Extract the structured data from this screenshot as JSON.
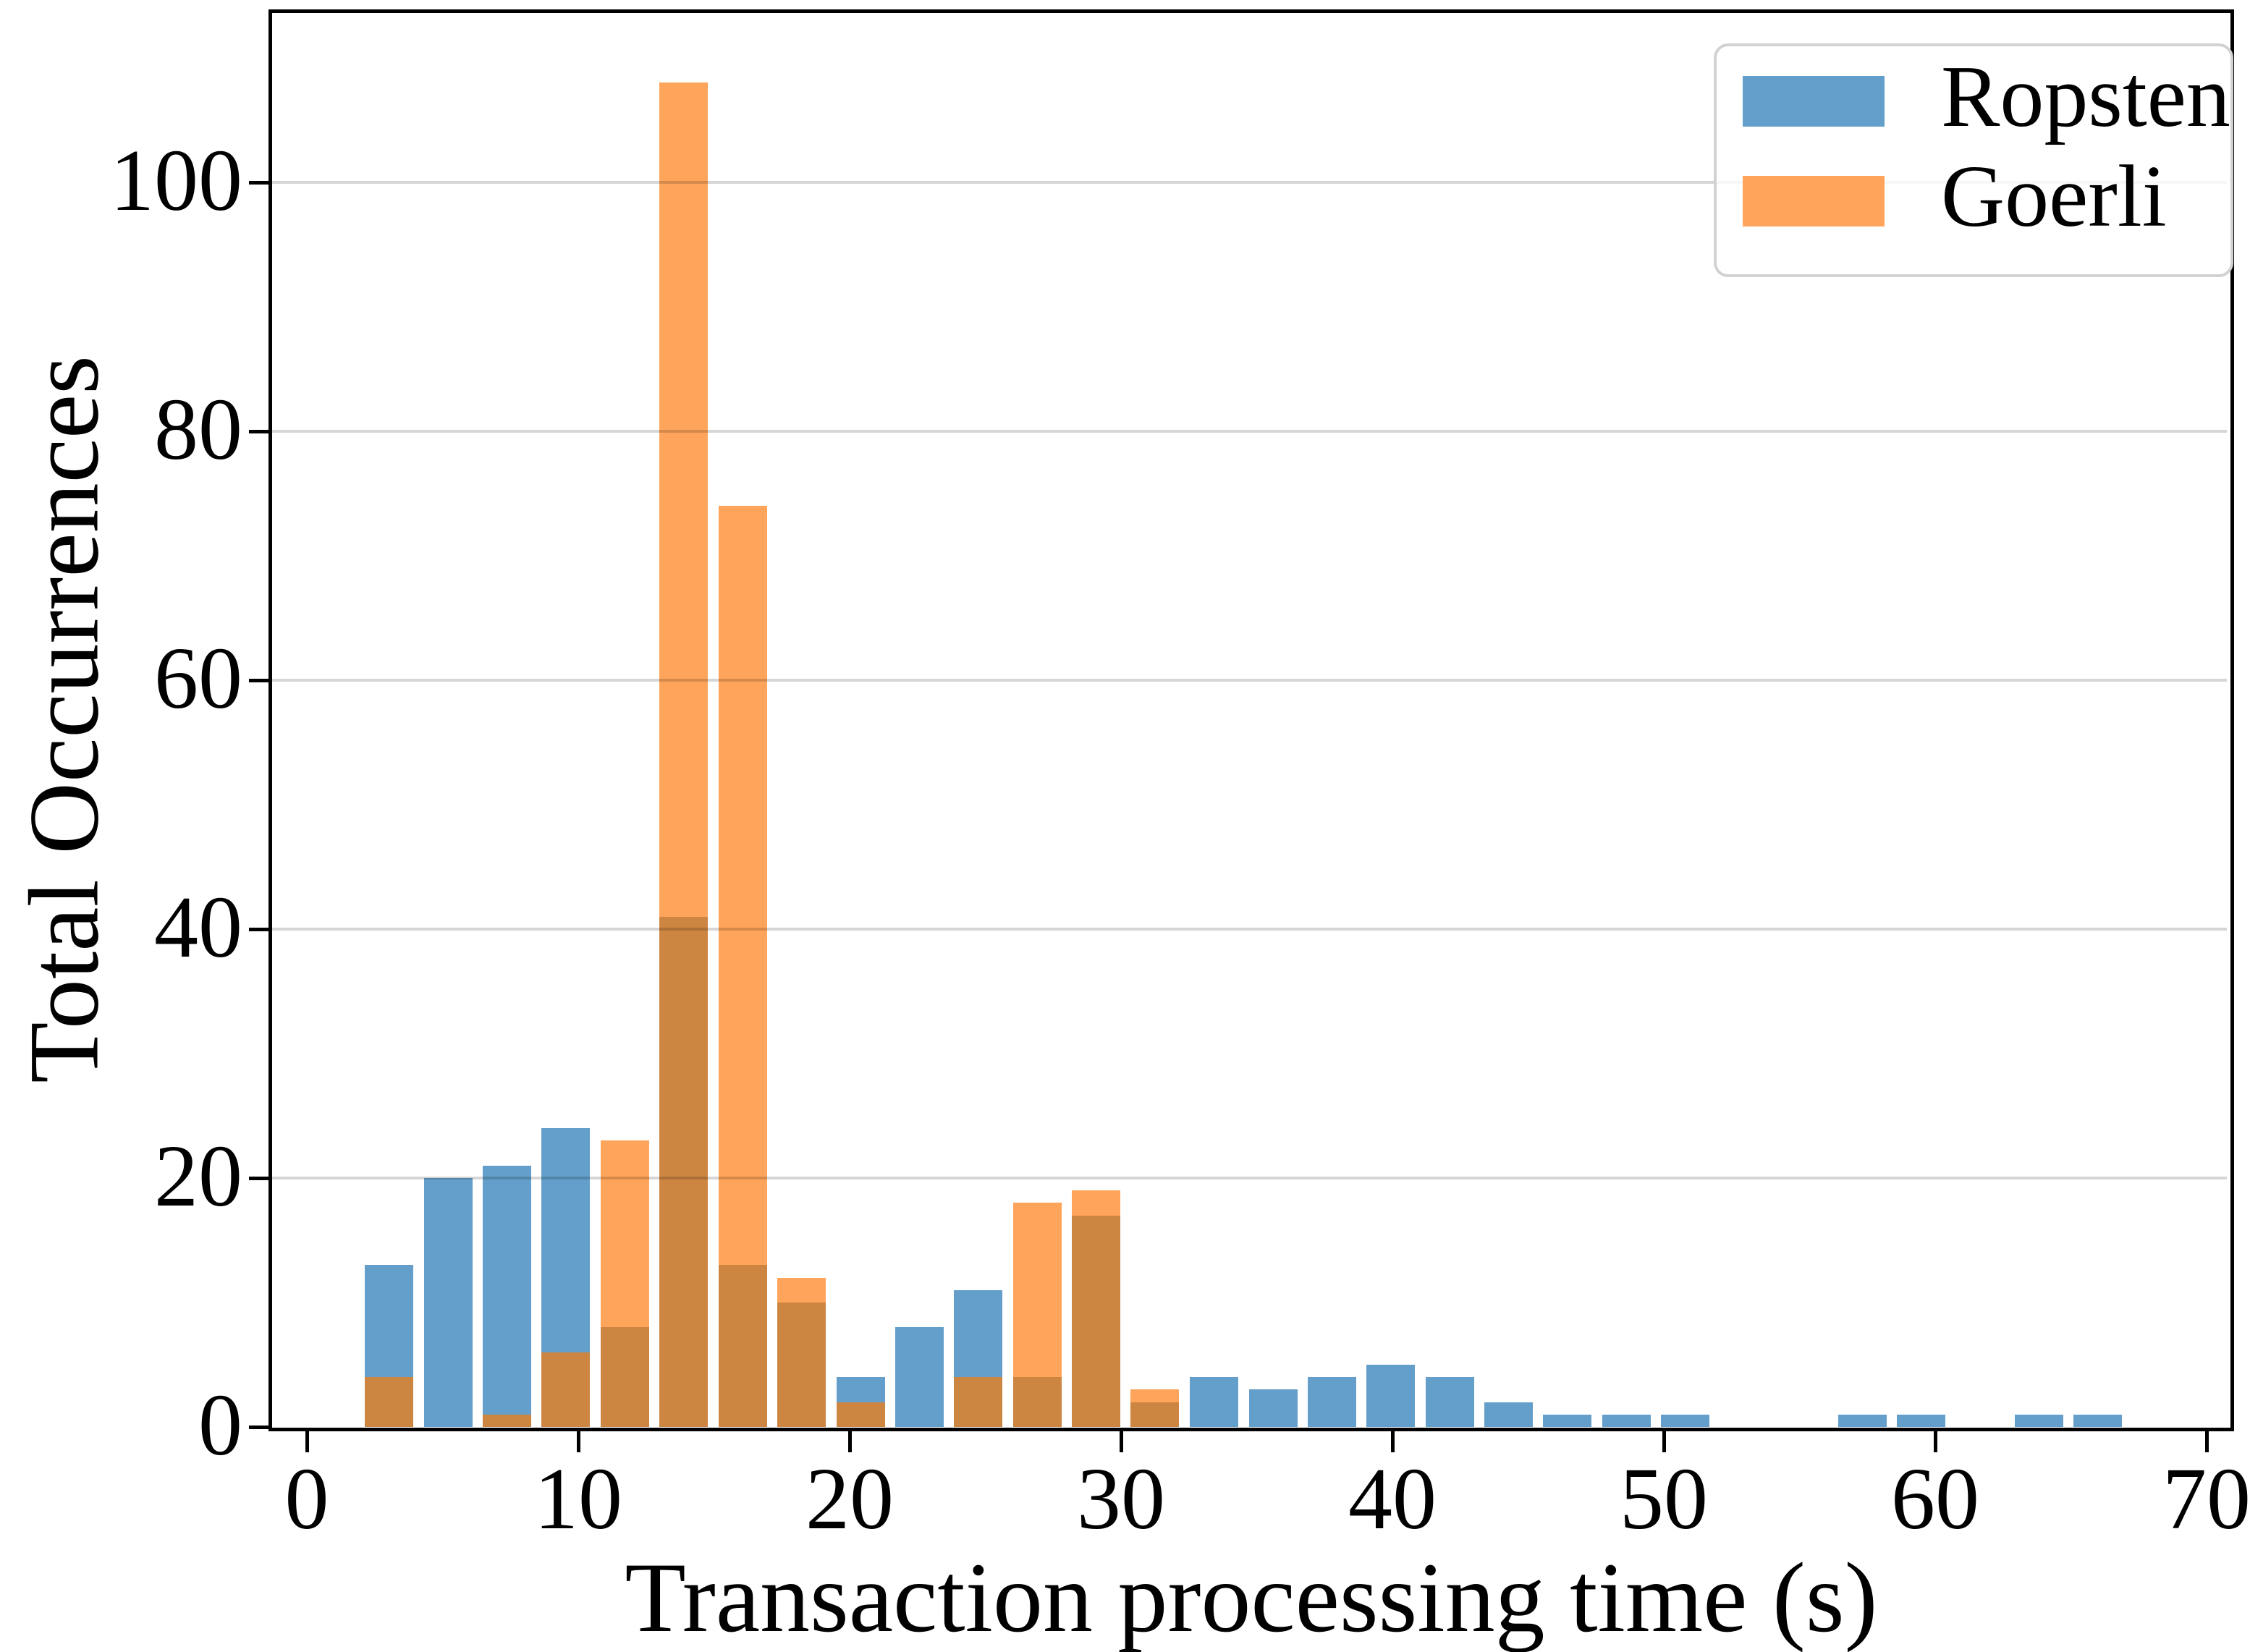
{
  "chart_data": {
    "type": "bar",
    "subtype": "overlaid-histogram",
    "title": "",
    "xlabel": "Transaction processing time (s)",
    "ylabel": "Total Occurrences",
    "x_ticks": [
      0,
      10,
      20,
      30,
      40,
      50,
      60,
      70
    ],
    "y_ticks": [
      0,
      20,
      40,
      60,
      80,
      100
    ],
    "xlim": [
      -1.25,
      71.0
    ],
    "ylim": [
      0,
      113.8
    ],
    "grid": "horizontal",
    "bin_width_s": 2.171,
    "bar_width_s": 1.79,
    "bin_centers_s": [
      3.03,
      5.2,
      7.37,
      9.54,
      11.71,
      13.89,
      16.06,
      18.23,
      20.4,
      22.57,
      24.74,
      26.91,
      29.08,
      31.25,
      33.42,
      35.6,
      37.77,
      39.94,
      42.11,
      44.28,
      46.45,
      48.62,
      50.79,
      52.96,
      55.13,
      57.31,
      59.48,
      61.65,
      63.82,
      65.99
    ],
    "series": [
      {
        "name": "Ropsten",
        "color": "#639fca",
        "values": [
          13,
          20,
          21,
          24,
          8,
          41,
          13,
          10,
          4,
          8,
          11,
          4,
          17,
          2,
          4,
          3,
          4,
          5,
          4,
          2,
          1,
          1,
          1,
          0,
          0,
          1,
          1,
          0,
          1,
          1
        ]
      },
      {
        "name": "Goerli",
        "color": "#fea55b",
        "values": [
          4,
          0,
          1,
          6,
          23,
          108,
          74,
          12,
          2,
          0,
          4,
          18,
          19,
          3,
          0,
          0,
          0,
          0,
          0,
          0,
          0,
          0,
          0,
          0,
          0,
          0,
          0,
          0,
          0,
          0
        ]
      }
    ],
    "overlap_color": "#cd8542",
    "legend_position": "upper right"
  },
  "axes": {
    "x_title": "Transaction processing time (s)",
    "y_title": "Total Occurrences"
  },
  "legend": {
    "items": [
      {
        "label": "Ropsten",
        "color": "#639fca"
      },
      {
        "label": "Goerli",
        "color": "#fea55b"
      }
    ]
  },
  "style": {
    "spine_color": "#000000",
    "gridline_color": "rgba(0,0,0,0.16)",
    "background": "#ffffff"
  }
}
